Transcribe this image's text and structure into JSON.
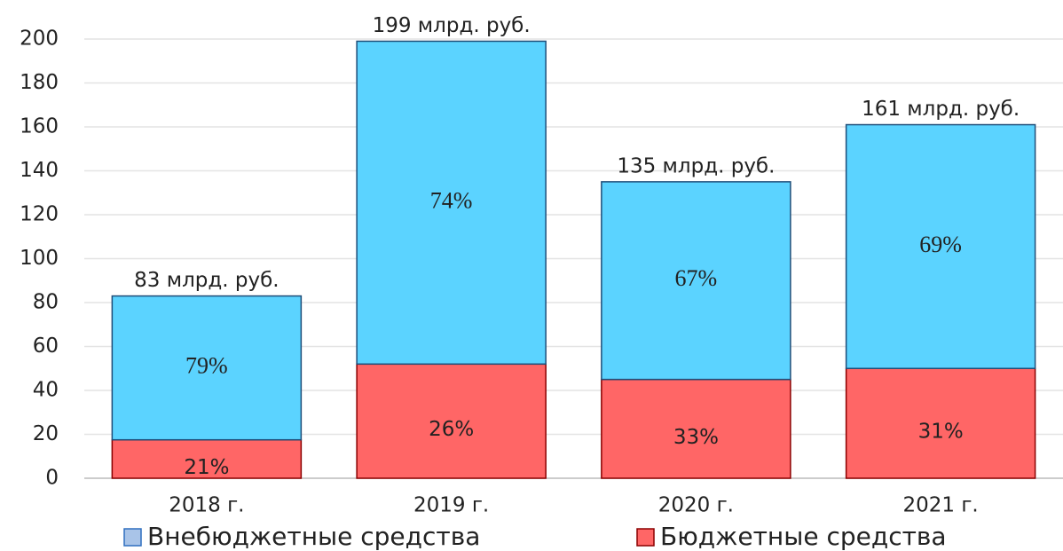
{
  "chart_data": {
    "type": "stacked_bar",
    "categories": [
      "2018 г.",
      "2019 г.",
      "2020 г.",
      "2021 г."
    ],
    "series": [
      {
        "name": "Внебюджетные средства",
        "color": "#5bd3ff",
        "legend_color": "#a9c4e8",
        "values": [
          65.5,
          147,
          90,
          111
        ],
        "share_labels": [
          "79%",
          "74%",
          "67%",
          "69%"
        ]
      },
      {
        "name": "Бюджетные средства",
        "color": "#ff6666",
        "legend_color": "#ff6666",
        "values": [
          17.5,
          52,
          45,
          50
        ],
        "share_labels": [
          "21%",
          "26%",
          "33%",
          "31%"
        ]
      }
    ],
    "stack_order": [
      1,
      0
    ],
    "total_labels": [
      "83 млрд. руб.",
      "199 млрд. руб.",
      "135 млрд. руб.",
      "161 млрд. руб."
    ],
    "ylim": [
      0,
      200
    ],
    "yticks": [
      0,
      20,
      40,
      60,
      80,
      100,
      120,
      140,
      160,
      180,
      200
    ],
    "grid": true
  }
}
